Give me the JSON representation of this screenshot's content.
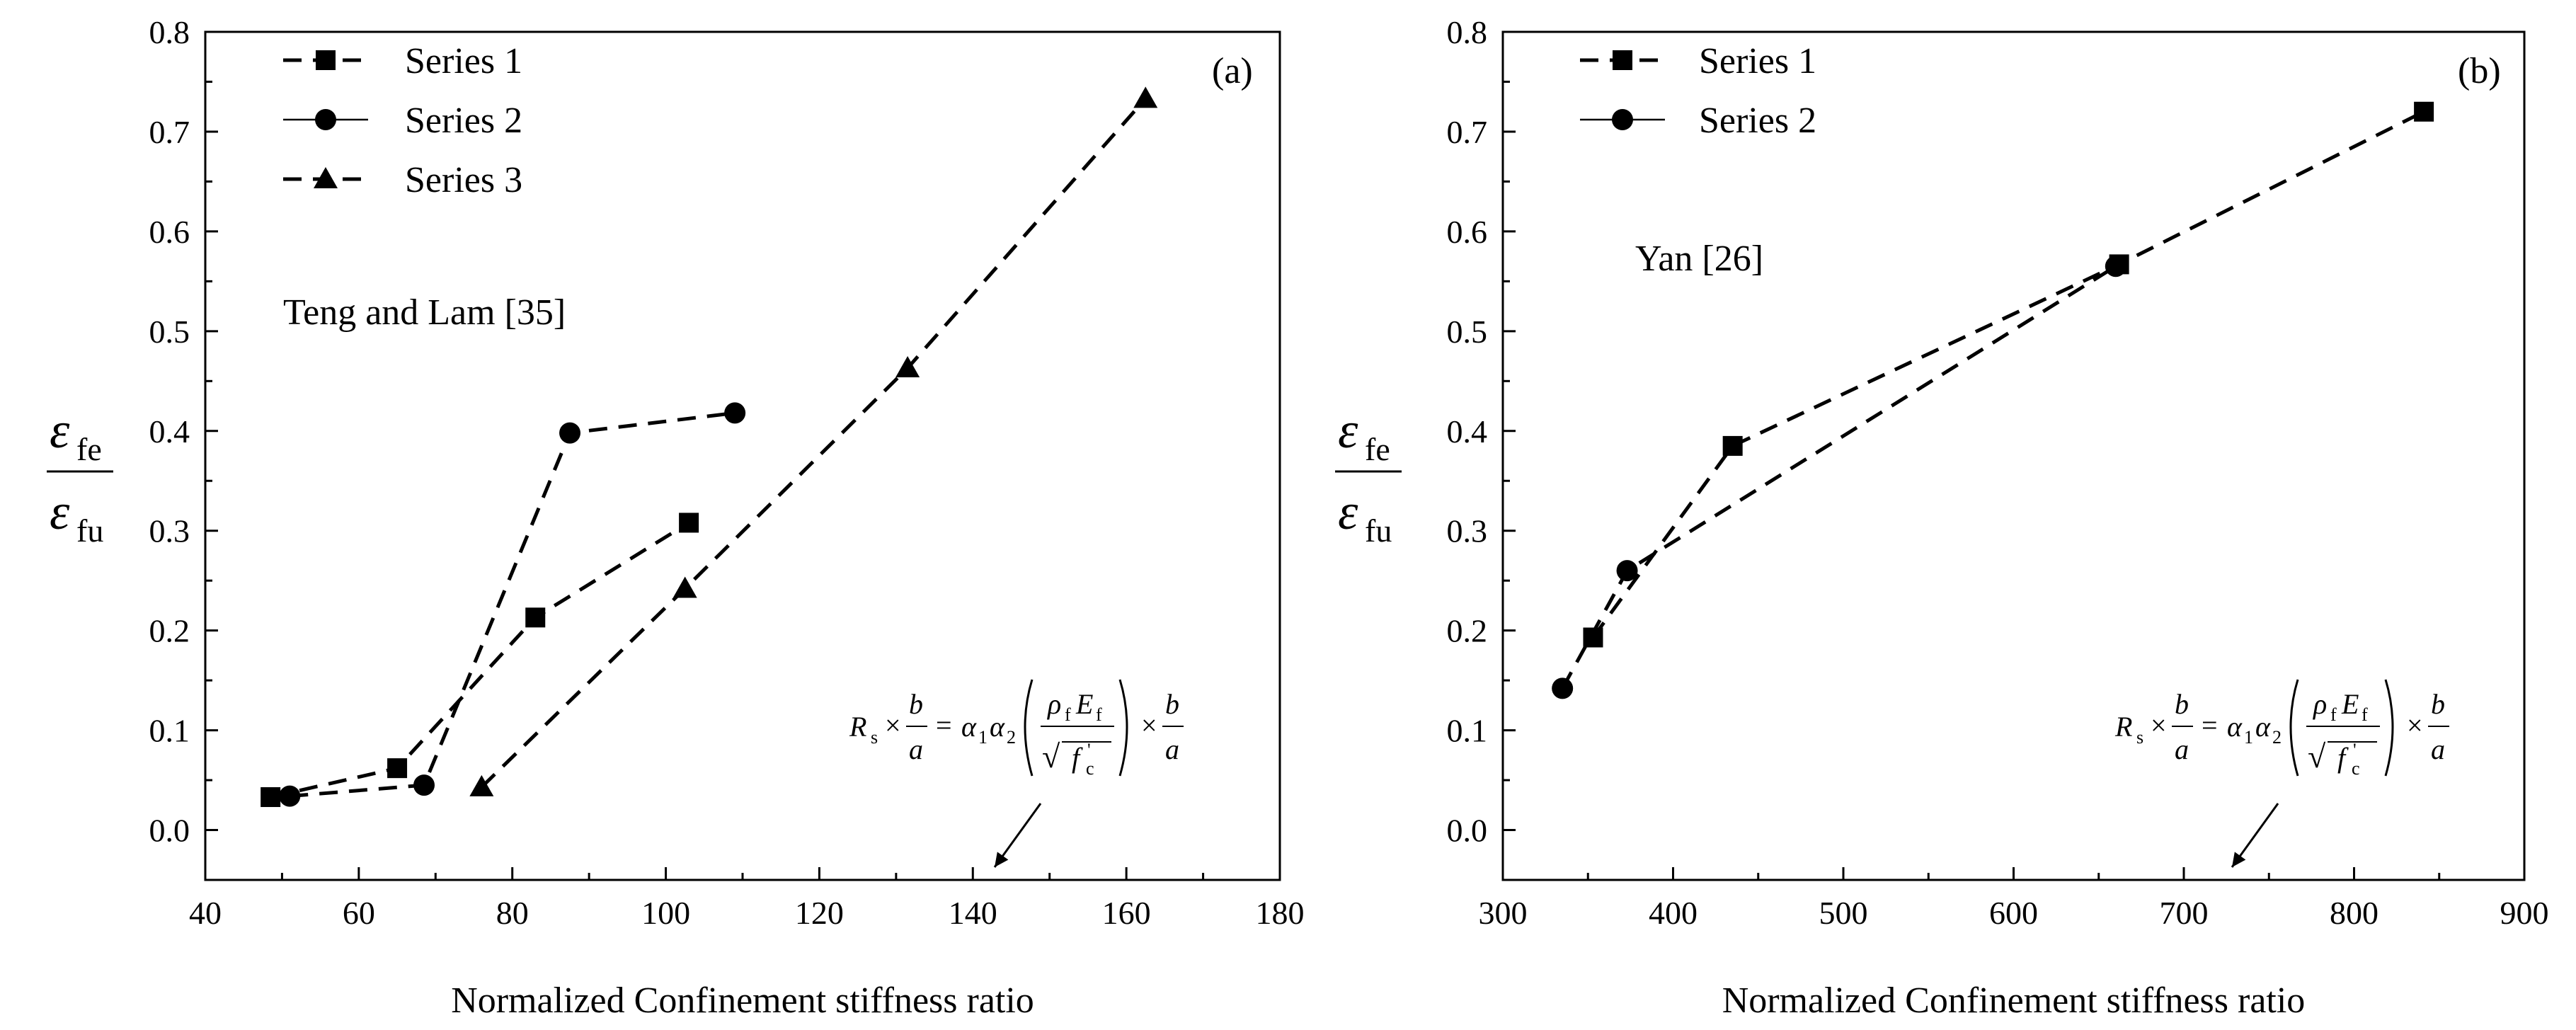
{
  "chart_data": [
    {
      "type": "line",
      "panel_label": "(a)",
      "annotation": "Teng and Lam [35]",
      "xlabel": "Normalized Confinement stiffness ratio",
      "ylabel": {
        "numerator": "ε",
        "numerator_sub": "fe",
        "denominator": "ε",
        "denominator_sub": "fu"
      },
      "xlim": [
        40,
        180
      ],
      "ylim": [
        -0.05,
        0.8
      ],
      "xticks": [
        "40",
        "60",
        "80",
        "100",
        "120",
        "140",
        "160",
        "180"
      ],
      "yticks": [
        "0.0",
        "0.1",
        "0.2",
        "0.3",
        "0.4",
        "0.5",
        "0.6",
        "0.7",
        "0.8"
      ],
      "legend_position": "top-left",
      "series": [
        {
          "name": "Series 1",
          "marker": "square",
          "line": "dashed",
          "x": [
            48.5,
            65.0,
            83.0,
            103.0
          ],
          "y": [
            0.033,
            0.062,
            0.213,
            0.308
          ]
        },
        {
          "name": "Series 2",
          "marker": "circle",
          "line": "dashed",
          "x": [
            51.0,
            68.5,
            87.5,
            109.0
          ],
          "y": [
            0.034,
            0.045,
            0.398,
            0.418
          ]
        },
        {
          "name": "Series 3",
          "marker": "triangle",
          "line": "dashed",
          "x": [
            76.0,
            102.5,
            131.5,
            162.5
          ],
          "y": [
            0.043,
            0.242,
            0.463,
            0.733
          ]
        }
      ],
      "equation": {
        "R": "R",
        "R_sub": "s",
        "times": "×",
        "b": "b",
        "a": "a",
        "eq": "=",
        "alpha1": "α",
        "alpha1_sub": "1",
        "alpha2": "α",
        "alpha2_sub": "2",
        "rho": "ρ",
        "rho_sub": "f",
        "E": "E",
        "E_sub": "f",
        "fc": "f",
        "fc_sub": "c",
        "fc_prime": "'",
        "sqrt": "√"
      }
    },
    {
      "type": "line",
      "panel_label": "(b)",
      "annotation": "Yan [26]",
      "xlabel": "Normalized Confinement stiffness ratio",
      "ylabel": {
        "numerator": "ε",
        "numerator_sub": "fe",
        "denominator": "ε",
        "denominator_sub": "fu"
      },
      "xlim": [
        300,
        900
      ],
      "ylim": [
        -0.05,
        0.8
      ],
      "xticks": [
        "300",
        "400",
        "500",
        "600",
        "700",
        "800",
        "900"
      ],
      "yticks": [
        "0.0",
        "0.1",
        "0.2",
        "0.3",
        "0.4",
        "0.5",
        "0.6",
        "0.7",
        "0.8"
      ],
      "legend_position": "top-left",
      "series": [
        {
          "name": "Series 1",
          "marker": "square",
          "line": "dashed",
          "x": [
            353,
            435,
            662,
            841
          ],
          "y": [
            0.193,
            0.385,
            0.567,
            0.72
          ]
        },
        {
          "name": "Series 2",
          "marker": "circle",
          "line": "dashed",
          "x": [
            335,
            373,
            660
          ],
          "y": [
            0.142,
            0.26,
            0.565
          ]
        }
      ],
      "equation": {
        "R": "R",
        "R_sub": "s",
        "times": "×",
        "b": "b",
        "a": "a",
        "eq": "=",
        "alpha1": "α",
        "alpha1_sub": "1",
        "alpha2": "α",
        "alpha2_sub": "2",
        "rho": "ρ",
        "rho_sub": "f",
        "E": "E",
        "E_sub": "f",
        "fc": "f",
        "fc_sub": "c",
        "fc_prime": "'",
        "sqrt": "√"
      }
    }
  ]
}
